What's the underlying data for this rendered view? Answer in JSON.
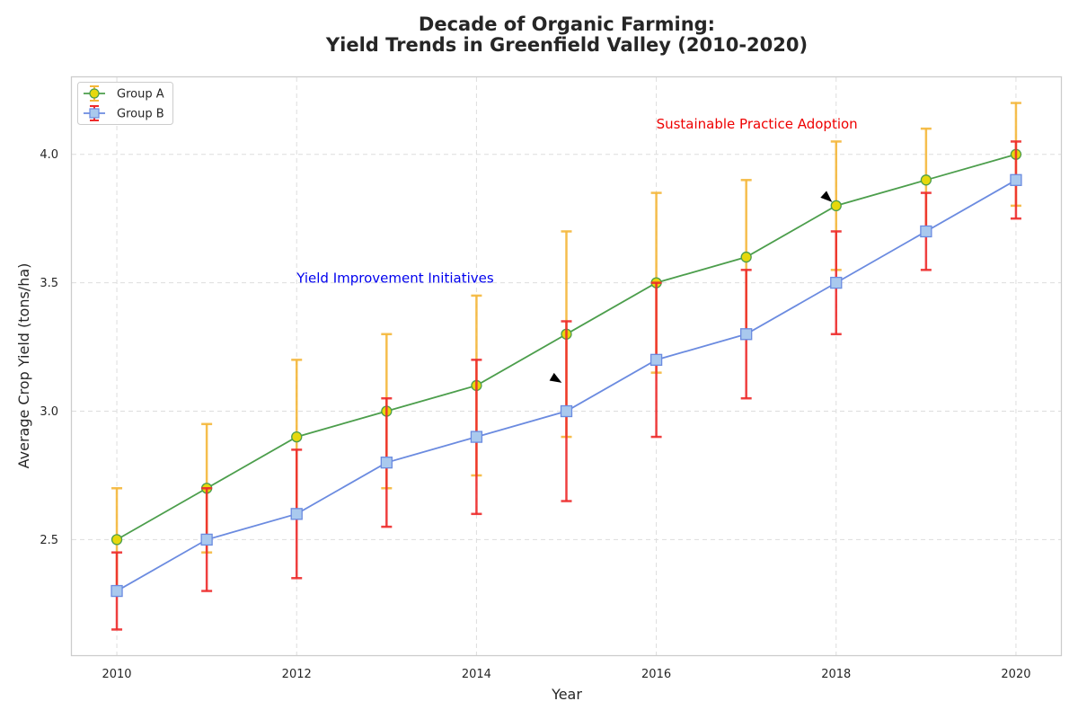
{
  "chart_data": {
    "type": "line",
    "title_line1": "Decade of Organic Farming:",
    "title_line2": "Yield Trends in Greenfield Valley (2010-2020)",
    "xlabel": "Year",
    "ylabel": "Average Crop Yield (tons/ha)",
    "xlim": [
      2009.5,
      2020.5
    ],
    "ylim": [
      2.05,
      4.3
    ],
    "grid": true,
    "legend_position": "top-left",
    "x": [
      2010,
      2011,
      2012,
      2013,
      2014,
      2015,
      2016,
      2017,
      2018,
      2019,
      2020
    ],
    "x_ticks": [
      "2010",
      "2012",
      "2014",
      "2016",
      "2018",
      "2020"
    ],
    "y_ticks": [
      "2.5",
      "3.0",
      "3.5",
      "4.0"
    ],
    "series": [
      {
        "name": "Group A",
        "values": [
          2.5,
          2.7,
          2.9,
          3.0,
          3.1,
          3.3,
          3.5,
          3.6,
          3.8,
          3.9,
          4.0
        ],
        "errors": [
          0.2,
          0.25,
          0.3,
          0.3,
          0.35,
          0.4,
          0.35,
          0.3,
          0.25,
          0.2,
          0.2
        ],
        "line_color": "#4c9e4c",
        "marker": "circle",
        "marker_fill": "#e6d80c",
        "marker_edge": "#4c9e4c",
        "error_color": "#f5b73a"
      },
      {
        "name": "Group B",
        "values": [
          2.3,
          2.5,
          2.6,
          2.8,
          2.9,
          3.0,
          3.2,
          3.3,
          3.5,
          3.7,
          3.9
        ],
        "errors": [
          0.15,
          0.2,
          0.25,
          0.25,
          0.3,
          0.35,
          0.3,
          0.25,
          0.2,
          0.15,
          0.15
        ],
        "line_color": "#6b8be0",
        "marker": "square",
        "marker_fill": "#a9c9ee",
        "marker_edge": "#6b8be0",
        "error_color": "#ee2b2b"
      }
    ],
    "annotations": [
      {
        "text": "Yield Improvement Initiatives",
        "color": "#0000ee",
        "text_x": 2012,
        "text_y": 3.5,
        "target_x": 2015,
        "target_y": 3.1
      },
      {
        "text": "Sustainable Practice Adoption",
        "color": "#ee0000",
        "text_x": 2016,
        "text_y": 4.1,
        "target_x": 2018,
        "target_y": 3.8
      }
    ]
  }
}
